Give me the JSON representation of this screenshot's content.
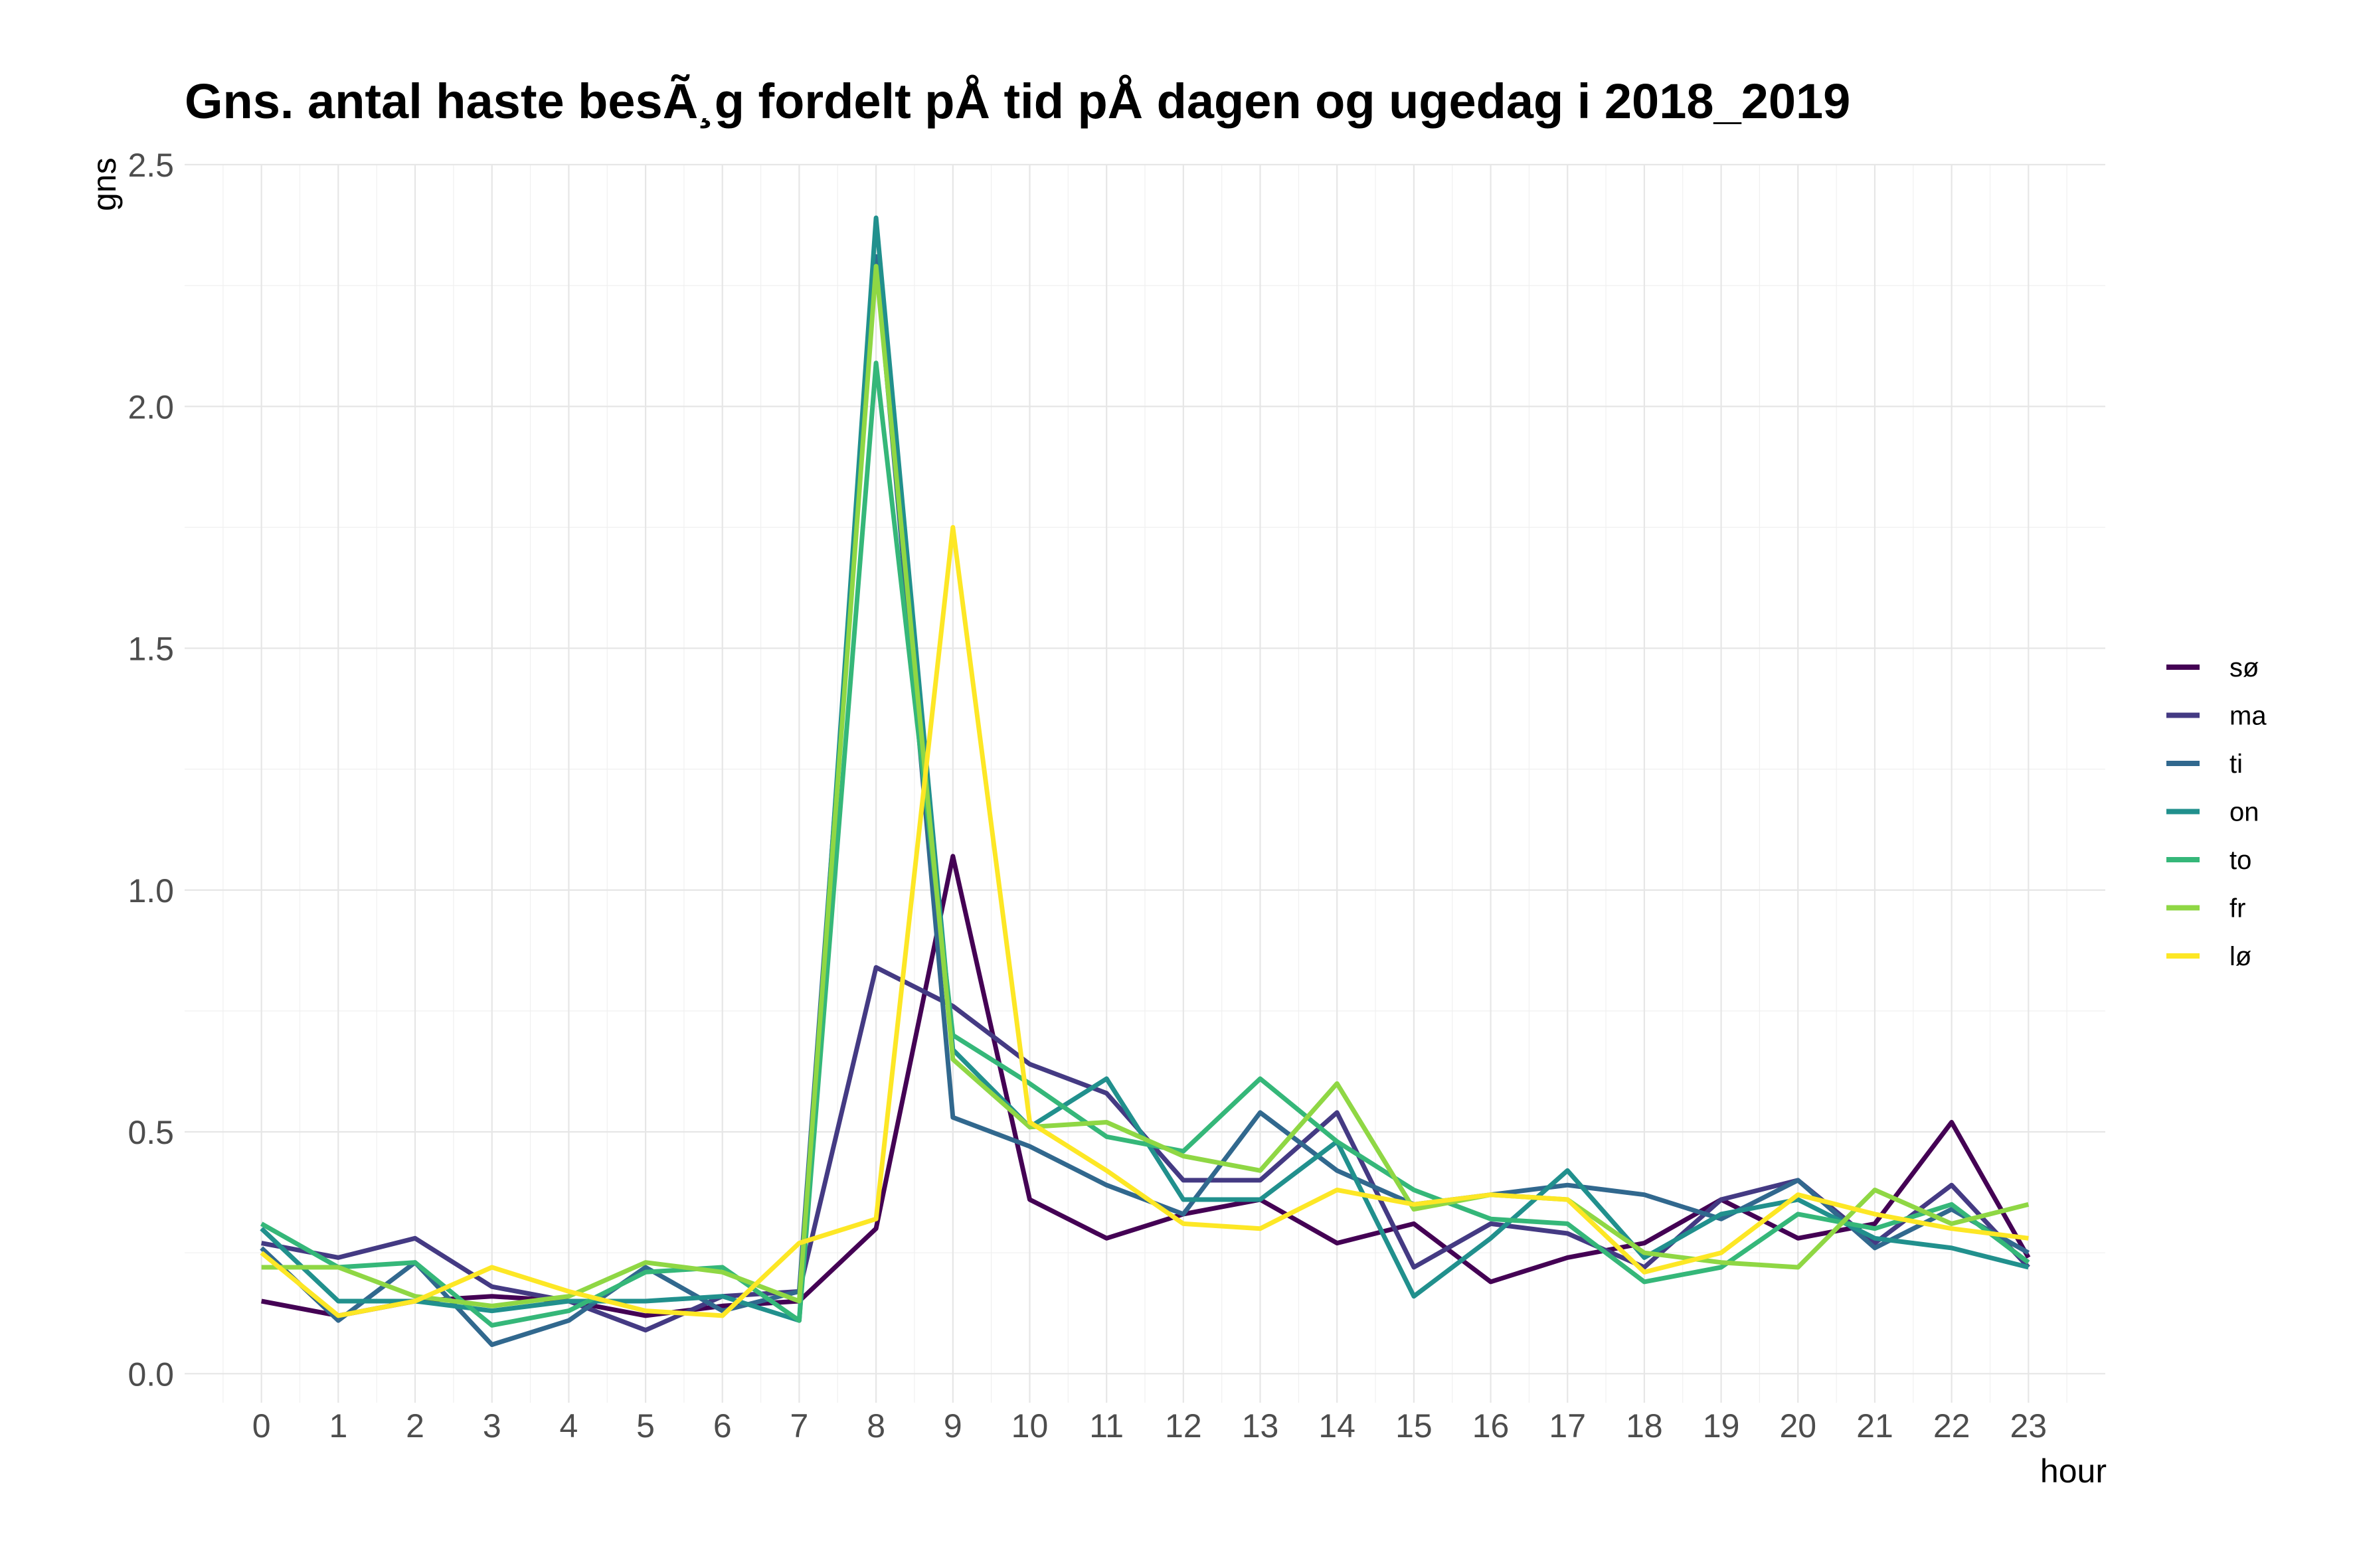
{
  "chart_data": {
    "type": "line",
    "title": "Gns. antal haste besÃ¸g fordelt pÅ tid pÅ dagen og ugedag i 2018_2019",
    "xlabel": "hour",
    "ylabel": "gns",
    "x": [
      0,
      1,
      2,
      3,
      4,
      5,
      6,
      7,
      8,
      9,
      10,
      11,
      12,
      13,
      14,
      15,
      16,
      17,
      18,
      19,
      20,
      21,
      22,
      23
    ],
    "x_ticks": [
      "0",
      "1",
      "2",
      "3",
      "4",
      "5",
      "6",
      "7",
      "8",
      "9",
      "10",
      "11",
      "12",
      "13",
      "14",
      "15",
      "16",
      "17",
      "18",
      "19",
      "20",
      "21",
      "22",
      "23"
    ],
    "y_ticks": [
      "0.0",
      "0.5",
      "1.0",
      "1.5",
      "2.0",
      "2.5"
    ],
    "y_tick_values": [
      0,
      0.5,
      1.0,
      1.5,
      2.0,
      2.5
    ],
    "ylim": [
      -0.06,
      2.5
    ],
    "xlim": [
      -1.0,
      24.0
    ],
    "grid": true,
    "legend_position": "right",
    "series": [
      {
        "name": "sø",
        "color": "#440154",
        "values": [
          0.15,
          0.12,
          0.15,
          0.16,
          0.15,
          0.12,
          0.14,
          0.15,
          0.3,
          1.07,
          0.36,
          0.28,
          0.33,
          0.36,
          0.27,
          0.31,
          0.19,
          0.24,
          0.27,
          0.36,
          0.28,
          0.31,
          0.52,
          0.24
        ]
      },
      {
        "name": "ma",
        "color": "#443a83",
        "values": [
          0.27,
          0.24,
          0.28,
          0.18,
          0.15,
          0.09,
          0.16,
          0.17,
          0.84,
          0.76,
          0.64,
          0.58,
          0.4,
          0.4,
          0.54,
          0.22,
          0.31,
          0.29,
          0.22,
          0.36,
          0.4,
          0.27,
          0.39,
          0.22
        ]
      },
      {
        "name": "ti",
        "color": "#31688e",
        "values": [
          0.26,
          0.11,
          0.23,
          0.06,
          0.11,
          0.22,
          0.13,
          0.17,
          2.31,
          0.53,
          0.47,
          0.39,
          0.33,
          0.54,
          0.42,
          0.35,
          0.37,
          0.39,
          0.37,
          0.32,
          0.4,
          0.26,
          0.34,
          0.25
        ]
      },
      {
        "name": "on",
        "color": "#21908d",
        "values": [
          0.3,
          0.15,
          0.15,
          0.13,
          0.15,
          0.15,
          0.16,
          0.11,
          2.39,
          0.67,
          0.51,
          0.61,
          0.36,
          0.36,
          0.48,
          0.16,
          0.28,
          0.42,
          0.24,
          0.33,
          0.36,
          0.28,
          0.26,
          0.22
        ]
      },
      {
        "name": "to",
        "color": "#35b779",
        "values": [
          0.31,
          0.22,
          0.23,
          0.1,
          0.13,
          0.21,
          0.22,
          0.11,
          2.09,
          0.7,
          0.6,
          0.49,
          0.46,
          0.61,
          0.48,
          0.38,
          0.32,
          0.31,
          0.19,
          0.22,
          0.33,
          0.3,
          0.35,
          0.23
        ]
      },
      {
        "name": "fr",
        "color": "#8fd744",
        "values": [
          0.22,
          0.22,
          0.16,
          0.14,
          0.16,
          0.23,
          0.21,
          0.15,
          2.29,
          0.65,
          0.51,
          0.52,
          0.45,
          0.42,
          0.6,
          0.34,
          0.37,
          0.36,
          0.25,
          0.23,
          0.22,
          0.38,
          0.31,
          0.35
        ]
      },
      {
        "name": "lø",
        "color": "#fde725",
        "values": [
          0.25,
          0.12,
          0.15,
          0.22,
          0.17,
          0.13,
          0.12,
          0.27,
          0.32,
          1.75,
          0.52,
          0.42,
          0.31,
          0.3,
          0.38,
          0.35,
          0.37,
          0.36,
          0.21,
          0.25,
          0.37,
          0.33,
          0.3,
          0.28
        ]
      }
    ]
  }
}
